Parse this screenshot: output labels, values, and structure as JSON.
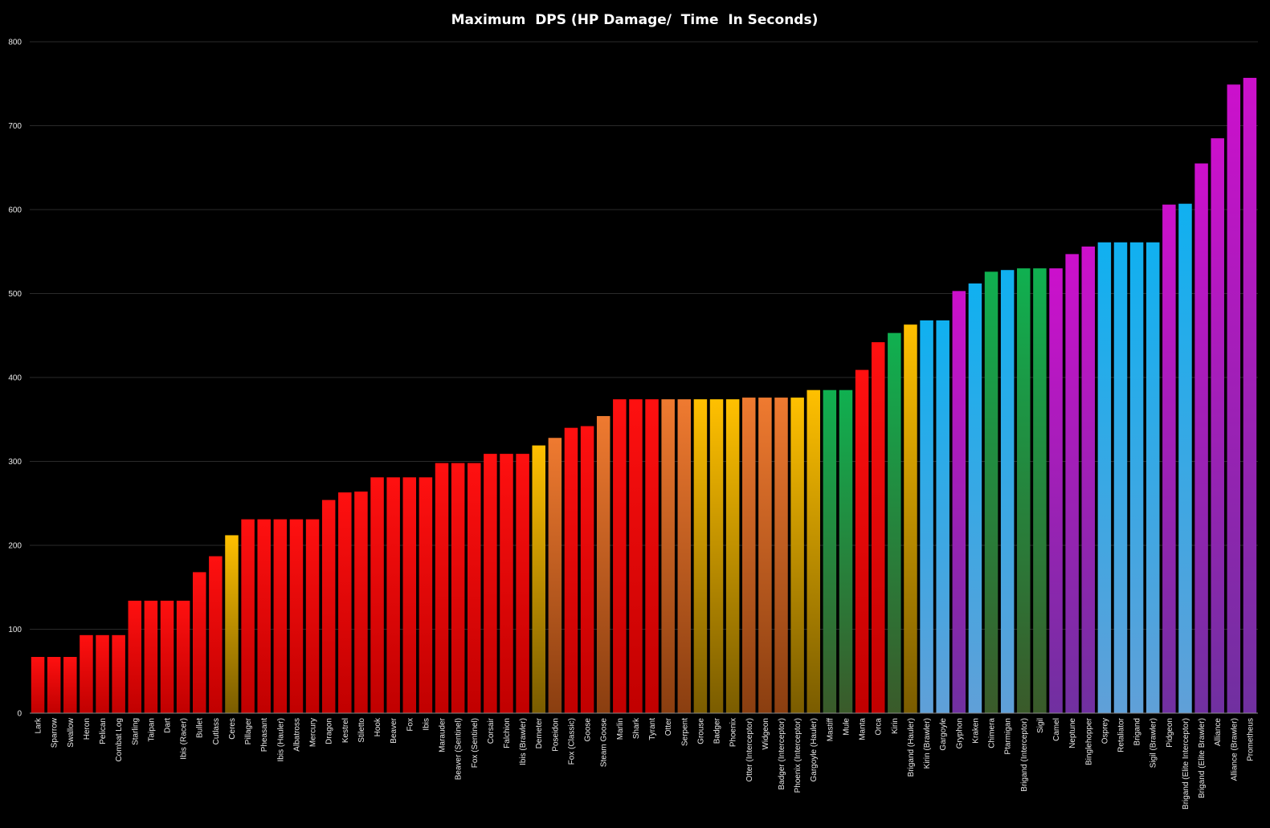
{
  "chart_data": {
    "type": "bar",
    "title": "Maximum  DPS (HP Damage/  Time  In Seconds)",
    "xlabel": "",
    "ylabel": "",
    "ylim": [
      0,
      800
    ],
    "yticks": [
      0,
      100,
      200,
      300,
      400,
      500,
      600,
      700,
      800
    ],
    "grid": true,
    "legend": "none",
    "palette": {
      "red": [
        "#ff1010",
        "#c00000"
      ],
      "yellow": [
        "#ffc000",
        "#7a5c00"
      ],
      "orange": [
        "#ef7a30",
        "#8a3e10"
      ],
      "green": [
        "#10b050",
        "#3a5a2a"
      ],
      "blue": [
        "#10b0f0",
        "#60a0d8"
      ],
      "purple": [
        "#cc10cc",
        "#7030a0"
      ]
    },
    "categories": [
      "Lark",
      "Sparrow",
      "Swallow",
      "Heron",
      "Pelican",
      "Combat Log",
      "Starling",
      "Taipan",
      "Dart",
      "Ibis (Racer)",
      "Bullet",
      "Cutlass",
      "Ceres",
      "Pillager",
      "Pheasant",
      "Ibis (Hauler)",
      "Albatross",
      "Mercury",
      "Dragon",
      "Kestrel",
      "Stiletto",
      "Hook",
      "Beaver",
      "Fox",
      "Ibis",
      "Marauder",
      "Beaver (Sentinel)",
      "Fox (Sentinel)",
      "Corsair",
      "Falchion",
      "Ibis (Brawler)",
      "Demeter",
      "Poseidon",
      "Fox (Classic)",
      "Goose",
      "Steam Goose",
      "Marlin",
      "Shark",
      "Tyrant",
      "Otter",
      "Serpent",
      "Grouse",
      "Badger",
      "Phoenix",
      "Otter (Interceptor)",
      "Widgeon",
      "Badger (Interceptor)",
      "Phoenix (Interceptor)",
      "Gargoyle (Hauler)",
      "Mastiff",
      "Mule",
      "Manta",
      "Orca",
      "Kirin",
      "Brigand (Hauler)",
      "Kirin (Brawler)",
      "Gargoyle",
      "Gryphon",
      "Kraken",
      "Chimera",
      "Ptarmigan",
      "Brigand (Interceptor)",
      "Sigil",
      "Camel",
      "Neptune",
      "Binglehopper",
      "Osprey",
      "Retaliator",
      "Brigand",
      "Sigil (Brawler)",
      "Pidgeon",
      "Brigand (Elite Interceptor)",
      "Brigand (Elite Brawler)",
      "Alliance",
      "Alliance (Brawler)",
      "Prometheus"
    ],
    "values": [
      67,
      67,
      67,
      93,
      93,
      93,
      134,
      134,
      134,
      134,
      168,
      187,
      212,
      231,
      231,
      231,
      231,
      231,
      254,
      263,
      264,
      281,
      281,
      281,
      281,
      298,
      298,
      298,
      309,
      309,
      309,
      319,
      328,
      340,
      342,
      354,
      374,
      374,
      374,
      374,
      374,
      374,
      374,
      374,
      376,
      376,
      376,
      376,
      385,
      385,
      385,
      409,
      442,
      453,
      463,
      468,
      468,
      503,
      512,
      526,
      528,
      530,
      530,
      530,
      547,
      556,
      561,
      561,
      561,
      561,
      606,
      607,
      655,
      685,
      749,
      757
    ],
    "colors": [
      "red",
      "red",
      "red",
      "red",
      "red",
      "red",
      "red",
      "red",
      "red",
      "red",
      "red",
      "red",
      "yellow",
      "red",
      "red",
      "red",
      "red",
      "red",
      "red",
      "red",
      "red",
      "red",
      "red",
      "red",
      "red",
      "red",
      "red",
      "red",
      "red",
      "red",
      "red",
      "yellow",
      "orange",
      "red",
      "red",
      "orange",
      "red",
      "red",
      "red",
      "orange",
      "orange",
      "yellow",
      "yellow",
      "yellow",
      "orange",
      "orange",
      "orange",
      "yellow",
      "yellow",
      "green",
      "green",
      "red",
      "red",
      "green",
      "yellow",
      "blue",
      "blue",
      "purple",
      "blue",
      "green",
      "blue",
      "green",
      "green",
      "purple",
      "purple",
      "purple",
      "blue",
      "blue",
      "blue",
      "blue",
      "purple",
      "blue",
      "purple",
      "purple",
      "purple",
      "purple"
    ]
  }
}
